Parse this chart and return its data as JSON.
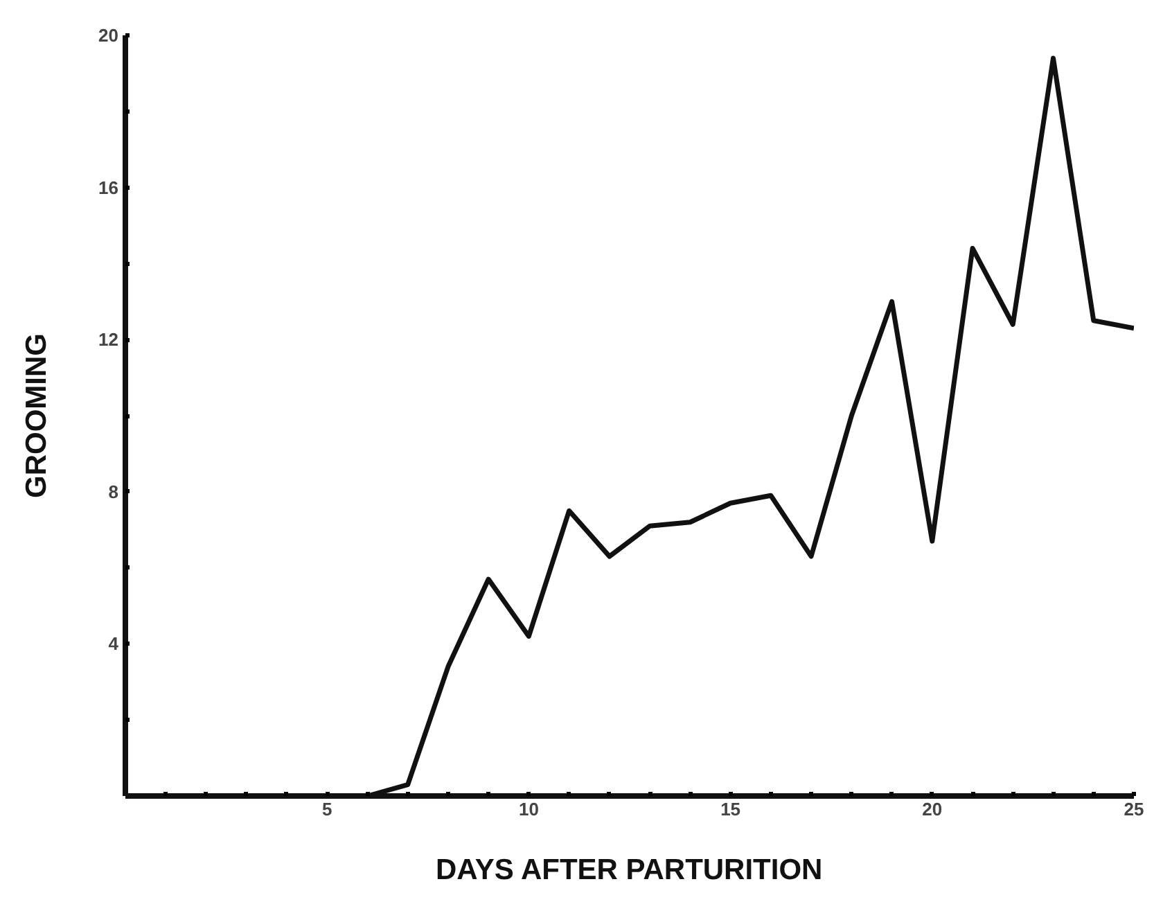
{
  "chart_data": {
    "type": "line",
    "xlabel": "DAYS AFTER PARTURITION",
    "ylabel": "GROOMING",
    "x": [
      1,
      2,
      3,
      4,
      5,
      6,
      7,
      8,
      9,
      10,
      11,
      12,
      13,
      14,
      15,
      16,
      17,
      18,
      19,
      20,
      21,
      22,
      23,
      24,
      25
    ],
    "series": [
      {
        "color": "#111111",
        "values": [
          0,
          0,
          0,
          0,
          0,
          0,
          0.3,
          3.4,
          5.7,
          4.2,
          7.5,
          6.3,
          7.1,
          7.2,
          7.7,
          7.9,
          6.3,
          10.0,
          13.0,
          6.7,
          14.4,
          12.4,
          19.4,
          12.5,
          12.3
        ]
      }
    ],
    "xlim": [
      0,
      25
    ],
    "ylim": [
      0,
      20
    ],
    "xticks": [
      {
        "value": 1,
        "label": null
      },
      {
        "value": 2,
        "label": null
      },
      {
        "value": 3,
        "label": null
      },
      {
        "value": 4,
        "label": null
      },
      5,
      {
        "value": 6,
        "label": null
      },
      {
        "value": 7,
        "label": null
      },
      {
        "value": 8,
        "label": null
      },
      {
        "value": 9,
        "label": null
      },
      10,
      {
        "value": 11,
        "label": null
      },
      {
        "value": 12,
        "label": null
      },
      {
        "value": 13,
        "label": null
      },
      {
        "value": 14,
        "label": null
      },
      15,
      {
        "value": 16,
        "label": null
      },
      {
        "value": 17,
        "label": null
      },
      {
        "value": 18,
        "label": null
      },
      {
        "value": 19,
        "label": null
      },
      20,
      {
        "value": 21,
        "label": null
      },
      {
        "value": 22,
        "label": null
      },
      {
        "value": 23,
        "label": null
      },
      {
        "value": 24,
        "label": null
      },
      25
    ],
    "yticks": [
      {
        "value": 2,
        "label": null
      },
      4,
      {
        "value": 6,
        "label": null
      },
      8,
      {
        "value": 10,
        "label": null
      },
      12,
      {
        "value": 14,
        "label": null
      },
      16,
      {
        "value": 18,
        "label": null
      },
      20
    ],
    "grid": false,
    "marker": "none",
    "line_style": "solid"
  }
}
